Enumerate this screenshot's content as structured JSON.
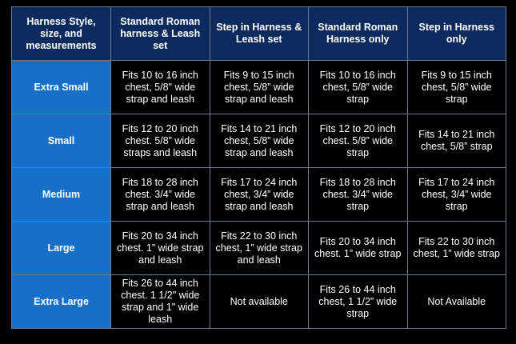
{
  "header": [
    "Harness Style, size, and measurements",
    "Standard Roman harness & Leash set",
    "Step in Harness & Leash set",
    "Standard Roman Harness only",
    "Step in Harness only"
  ],
  "rows": [
    {
      "size": "Extra Small",
      "cells": [
        "Fits 10 to 16 inch chest, 5/8\" wide strap and leash",
        "Fits 9 to 15 inch chest, 5/8” wide strap and leash",
        "Fits 10 to 16 inch chest, 5/8” wide strap",
        "Fits 9 to 15 inch chest, 5/8” wide strap"
      ]
    },
    {
      "size": "Small",
      "cells": [
        "Fits 12 to 20 inch chest. 5/8” wide straps and leash",
        "Fits 14 to 21 inch chest, 5/8” wide strap and leash",
        "Fits 12 to 20 inch chest. 5/8” wide strap",
        "Fits 14 to 21 inch chest, 5/8” strap"
      ]
    },
    {
      "size": "Medium",
      "cells": [
        "Fits 18 to 28 inch chest. 3/4” wide strap and leash",
        "Fits 17 to 24 inch chest, 3/4” wide strap and leash",
        "Fits 18 to 28 inch chest. 3/4” wide strap",
        "Fits 17 to 24 inch chest, 3/4” wide strap"
      ]
    },
    {
      "size": "Large",
      "cells": [
        "Fits 20 to 34 inch chest. 1” wide strap and leash",
        "Fits 22 to 30 inch chest, 1” wide strap and leash",
        "Fits 20 to 34 inch chest. 1” wide strap",
        "Fits 22 to 30 inch chest, 1” wide strap"
      ]
    },
    {
      "size": "Extra Large",
      "cells": [
        "Fits 26 to 44 inch chest. 1 1/2\" wide strap and 1\" wide leash",
        "Not available",
        "Fits 26 to 44 inch chest, 1 1/2” wide strap",
        "Not Available"
      ]
    }
  ],
  "colors": {
    "header_bg": "#0c2a5e",
    "size_bg": "#1670c8",
    "cell_bg": "#000000",
    "border": "#6d7a8c"
  }
}
